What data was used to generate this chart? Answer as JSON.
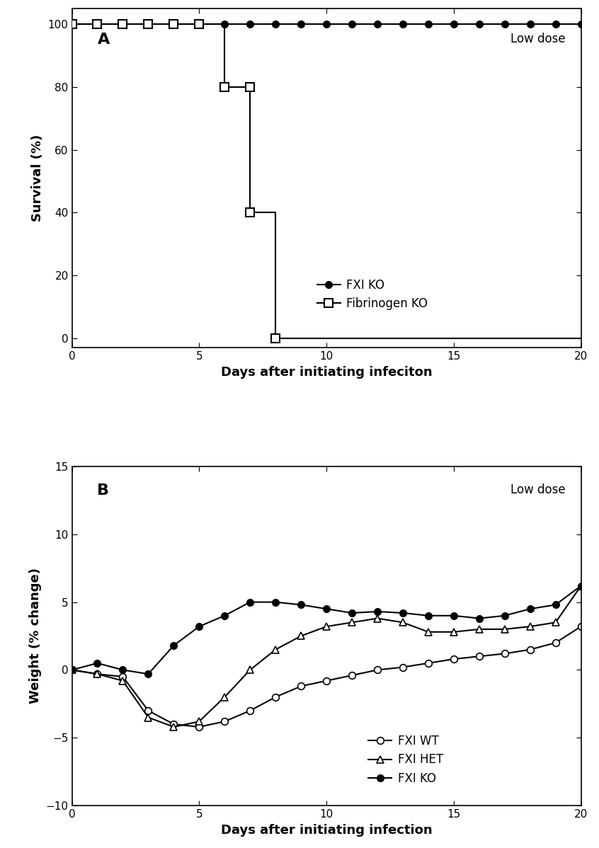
{
  "panel_A": {
    "label": "A",
    "title": "Low dose",
    "xlabel": "Days after initiating infeciton",
    "ylabel": "Survival (%)",
    "xlim": [
      0,
      20
    ],
    "ylim": [
      -3,
      105
    ],
    "yticks": [
      0,
      20,
      40,
      60,
      80,
      100
    ],
    "xticks": [
      0,
      5,
      10,
      15,
      20
    ],
    "fxi_ko_x": [
      0,
      1,
      2,
      3,
      4,
      5,
      6,
      7,
      8,
      9,
      10,
      11,
      12,
      13,
      14,
      15,
      16,
      17,
      18,
      19,
      20
    ],
    "fxi_ko_y": [
      100,
      100,
      100,
      100,
      100,
      100,
      100,
      100,
      100,
      100,
      100,
      100,
      100,
      100,
      100,
      100,
      100,
      100,
      100,
      100,
      100
    ],
    "fibko_step_x": [
      0,
      6,
      6,
      7,
      7,
      8,
      8,
      20
    ],
    "fibko_step_y": [
      100,
      100,
      80,
      80,
      40,
      40,
      0,
      0
    ],
    "fibko_marker_x": [
      0,
      1,
      2,
      3,
      4,
      5,
      6,
      7,
      7,
      8
    ],
    "fibko_marker_y": [
      100,
      100,
      100,
      100,
      100,
      100,
      80,
      80,
      40,
      0
    ]
  },
  "panel_B": {
    "label": "B",
    "title": "Low dose",
    "xlabel": "Days after initiating infection",
    "ylabel": "Weight (% change)",
    "xlim": [
      0,
      20
    ],
    "ylim": [
      -10,
      15
    ],
    "yticks": [
      -10,
      -5,
      0,
      5,
      10,
      15
    ],
    "xticks": [
      0,
      5,
      10,
      15,
      20
    ],
    "fxi_wt_x": [
      0,
      1,
      2,
      3,
      4,
      5,
      6,
      7,
      8,
      9,
      10,
      11,
      12,
      13,
      14,
      15,
      16,
      17,
      18,
      19,
      20
    ],
    "fxi_wt_y": [
      0,
      -0.3,
      -0.5,
      -3.0,
      -4.0,
      -4.2,
      -3.8,
      -3.0,
      -2.0,
      -1.2,
      -0.8,
      -0.4,
      0.0,
      0.2,
      0.5,
      0.8,
      1.0,
      1.2,
      1.5,
      2.0,
      3.2
    ],
    "fxi_het_x": [
      0,
      1,
      2,
      3,
      4,
      5,
      6,
      7,
      8,
      9,
      10,
      11,
      12,
      13,
      14,
      15,
      16,
      17,
      18,
      19,
      20
    ],
    "fxi_het_y": [
      0,
      -0.3,
      -0.8,
      -3.5,
      -4.2,
      -3.8,
      -2.0,
      0.0,
      1.5,
      2.5,
      3.2,
      3.5,
      3.8,
      3.5,
      2.8,
      2.8,
      3.0,
      3.0,
      3.2,
      3.5,
      6.2
    ],
    "fxi_ko_x": [
      0,
      1,
      2,
      3,
      4,
      5,
      6,
      7,
      8,
      9,
      10,
      11,
      12,
      13,
      14,
      15,
      16,
      17,
      18,
      19,
      20
    ],
    "fxi_ko_y": [
      0,
      0.5,
      0.0,
      -0.3,
      1.8,
      3.2,
      4.0,
      5.0,
      5.0,
      4.8,
      4.5,
      4.2,
      4.3,
      4.2,
      4.0,
      4.0,
      3.8,
      4.0,
      4.5,
      4.8,
      6.2
    ]
  }
}
